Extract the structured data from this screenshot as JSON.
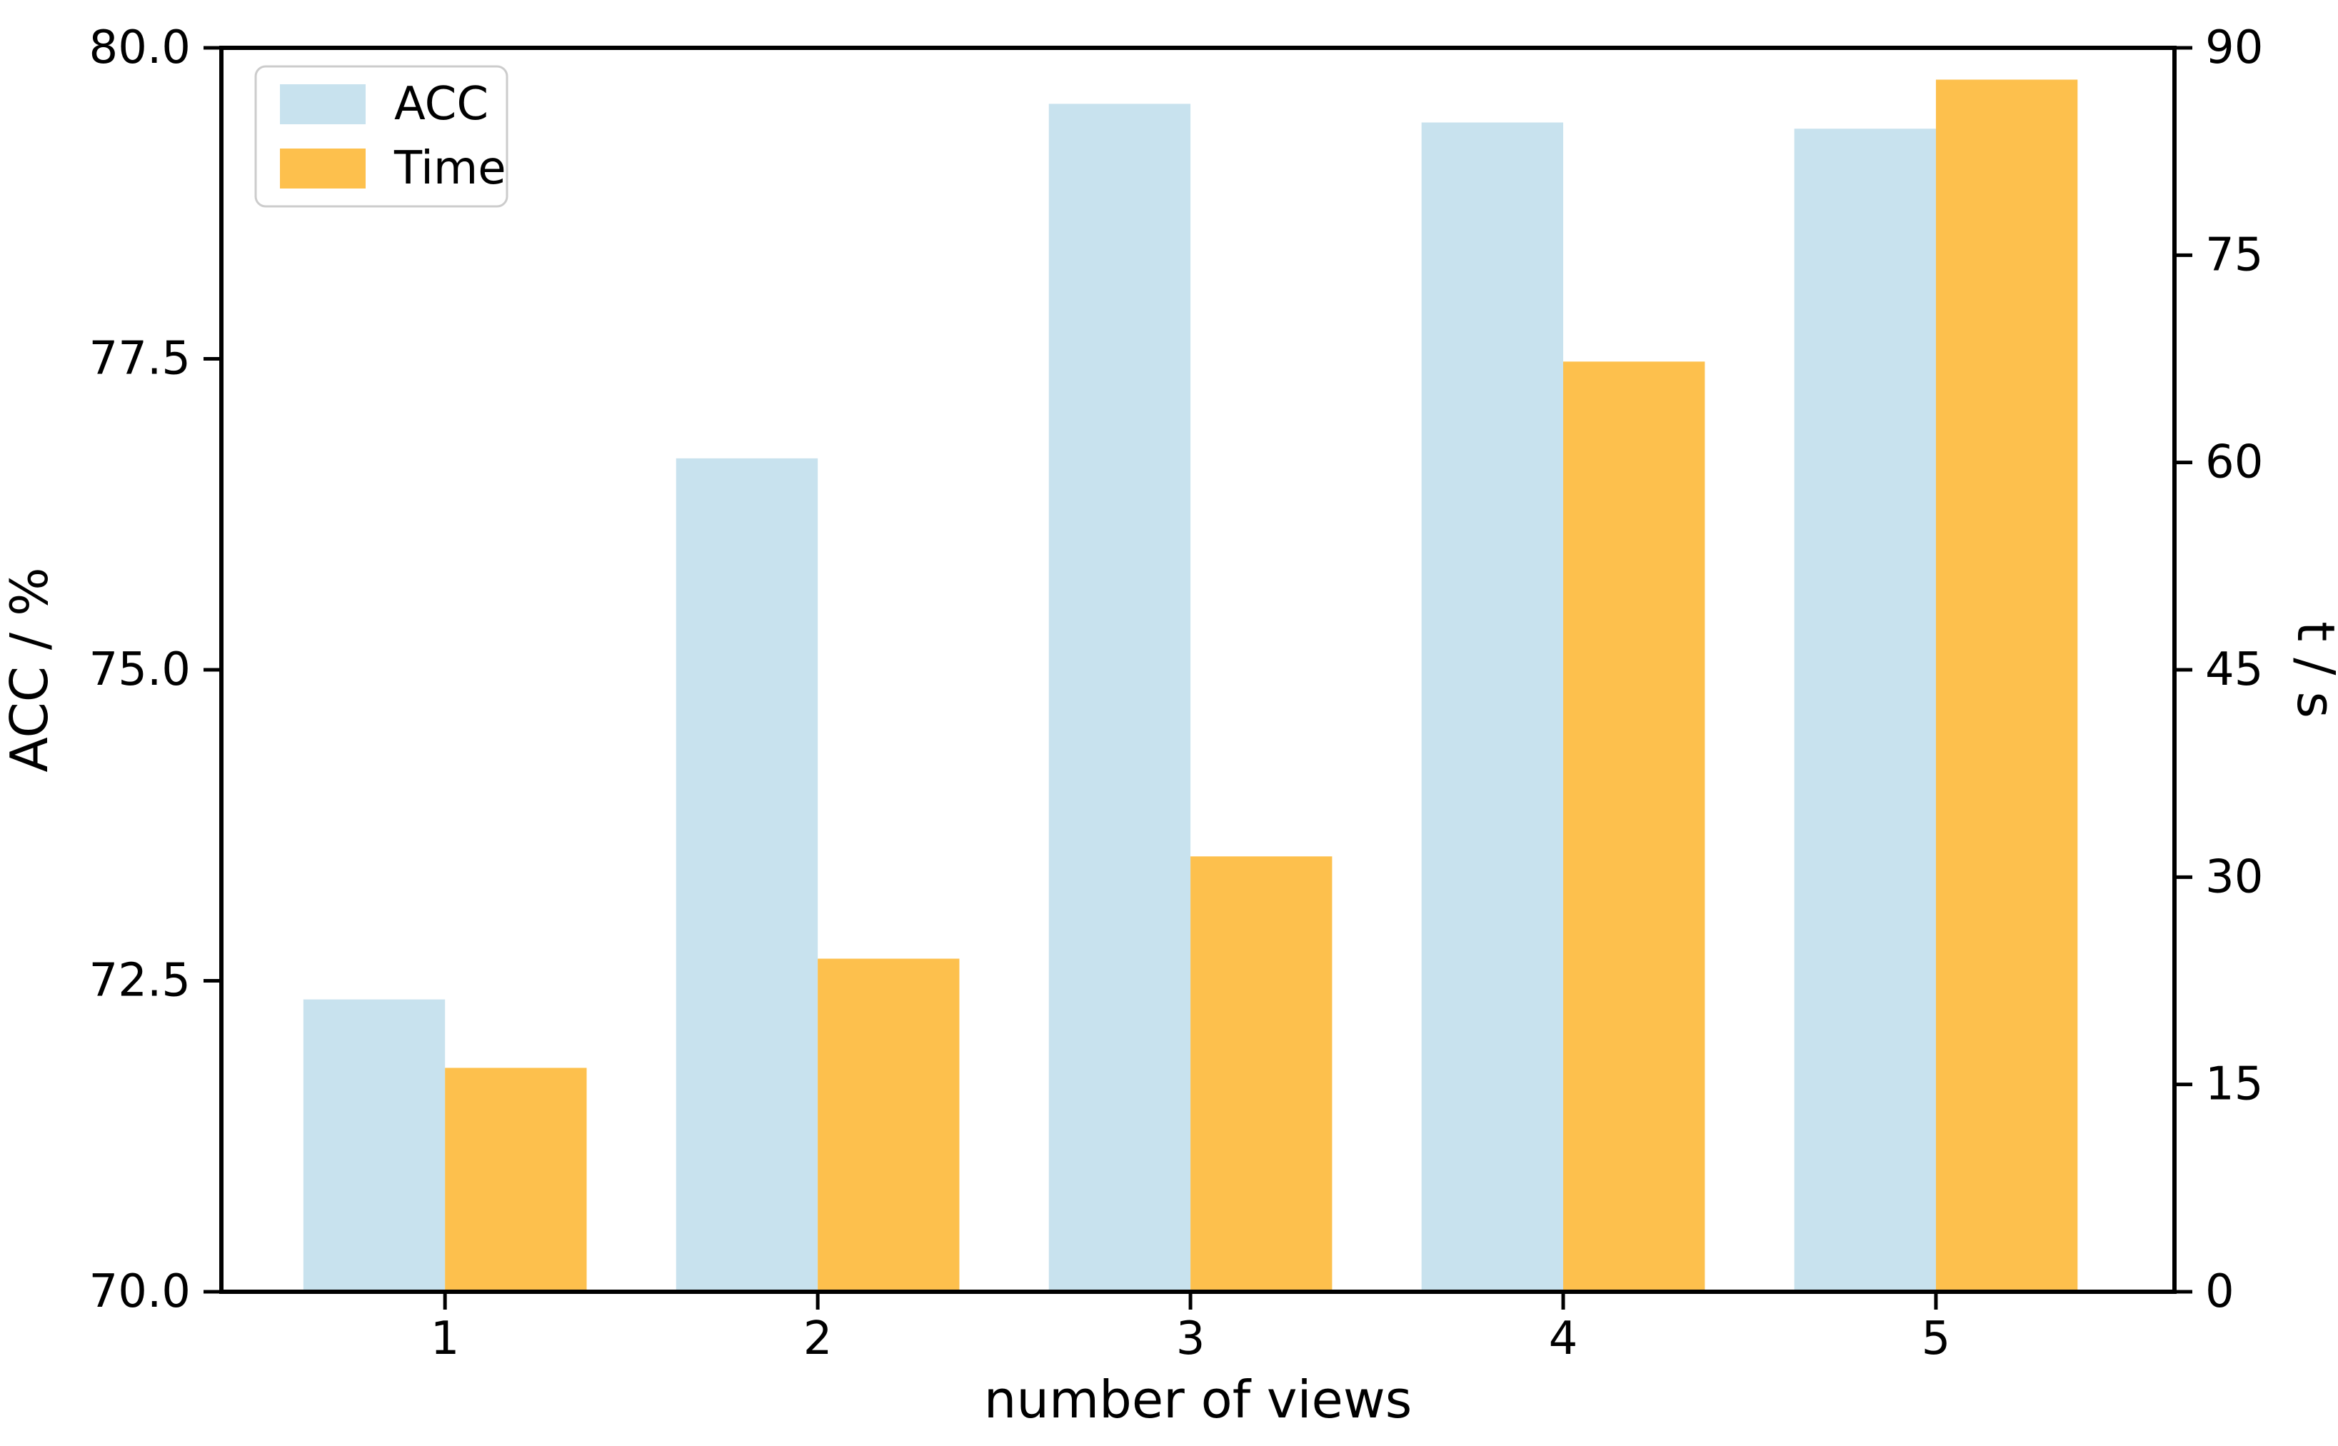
{
  "figure": {
    "background": "#ffffff",
    "text_color": "#000000",
    "spine_color": "#000000"
  },
  "chart_data": {
    "type": "bar",
    "title": "",
    "xlabel": "number of views",
    "ylabel_left": "ACC / %",
    "ylabel_right": "t / s",
    "categories": [
      "1",
      "2",
      "3",
      "4",
      "5"
    ],
    "series": [
      {
        "name": "ACC",
        "axis": "left",
        "color": "#C8E2EE",
        "values": [
          72.35,
          76.7,
          79.55,
          79.4,
          79.35
        ]
      },
      {
        "name": "Time",
        "axis": "right",
        "color": "#FDC04D",
        "values": [
          16.2,
          24.1,
          31.5,
          67.3,
          87.7
        ]
      }
    ],
    "ylim_left": [
      70.0,
      80.0
    ],
    "yticks_left": [
      "70.0",
      "72.5",
      "75.0",
      "77.5",
      "80.0"
    ],
    "ylim_right": [
      0,
      90
    ],
    "yticks_right": [
      "0",
      "15",
      "30",
      "45",
      "60",
      "75",
      "90"
    ],
    "xlim": [
      0.4,
      5.64
    ],
    "bar_width": 0.38,
    "grid": false,
    "legend": {
      "position": "upper left",
      "entries": [
        "ACC",
        "Time"
      ]
    }
  }
}
